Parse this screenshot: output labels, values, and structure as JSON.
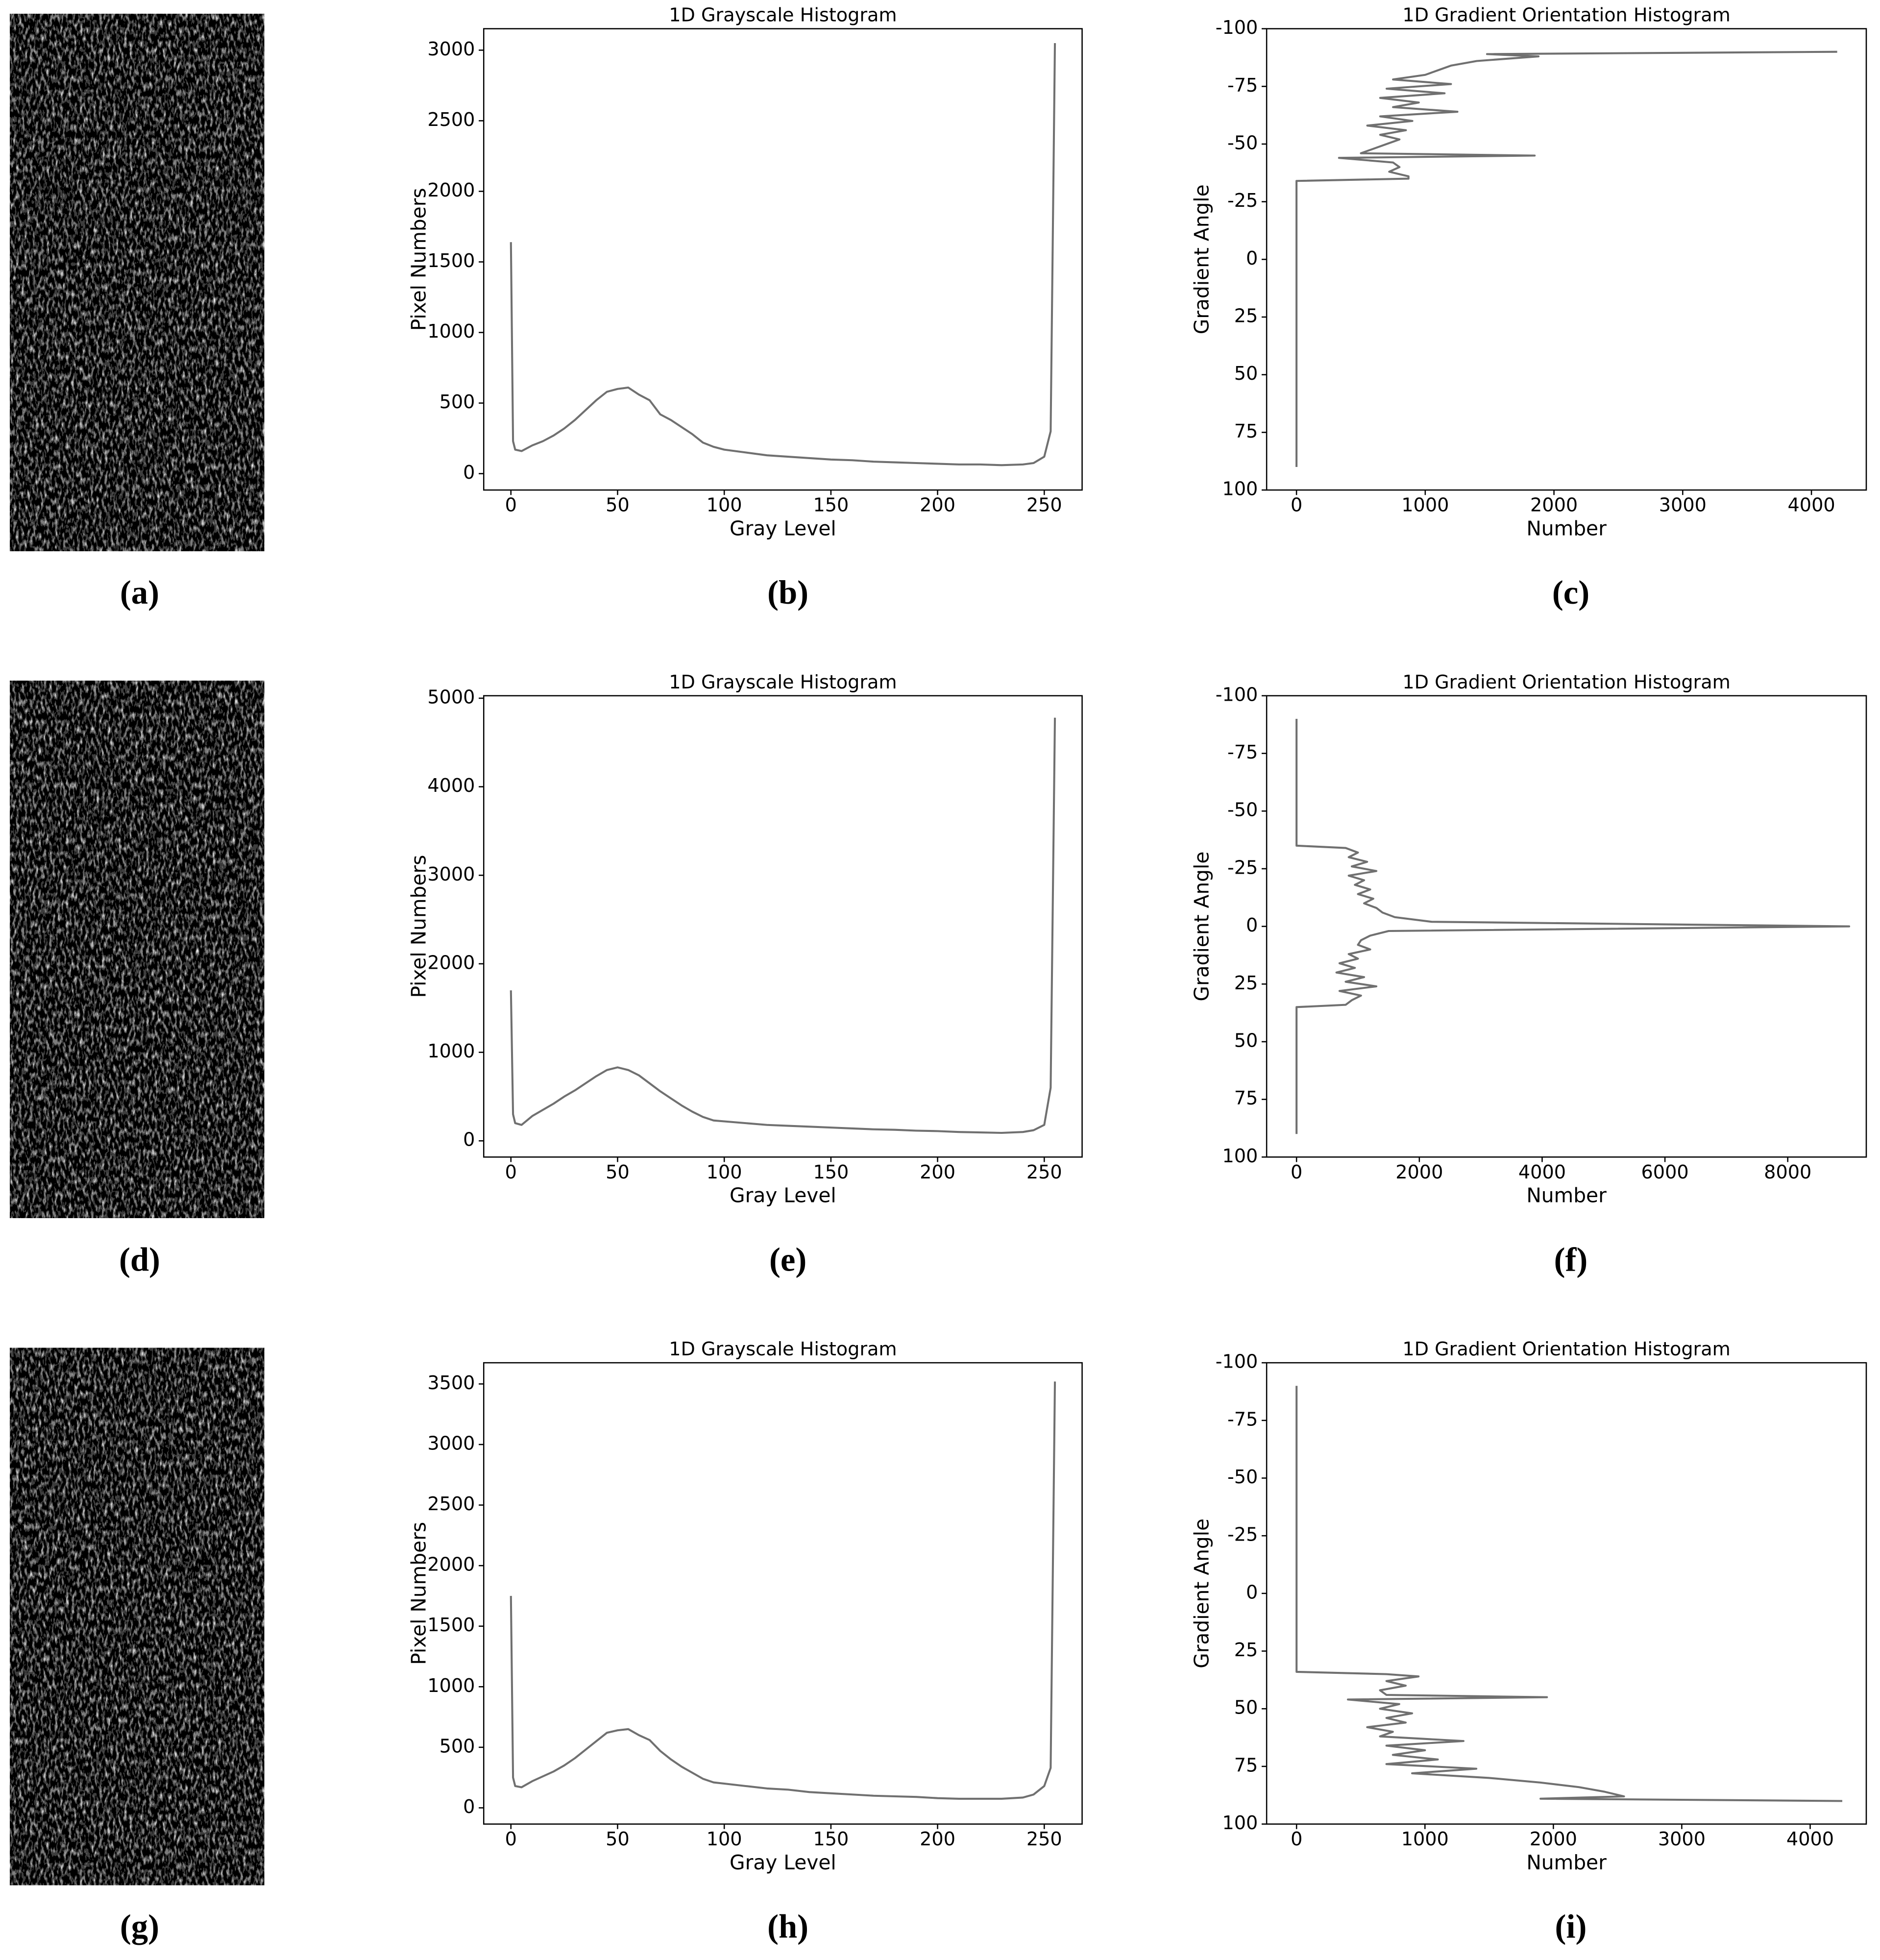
{
  "captions": [
    "(a)",
    "(b)",
    "(c)",
    "(d)",
    "(e)",
    "(f)",
    "(g)",
    "(h)",
    "(i)"
  ],
  "chart_data": [
    {
      "type": "line",
      "title": "1D Grayscale Histogram",
      "x_label": "Gray Level",
      "y_label": "Pixel Numbers",
      "color": "#707070",
      "x": [
        0,
        1,
        2,
        5,
        10,
        15,
        20,
        25,
        30,
        35,
        40,
        45,
        50,
        55,
        60,
        65,
        70,
        75,
        80,
        85,
        90,
        95,
        100,
        110,
        120,
        130,
        140,
        150,
        160,
        170,
        180,
        190,
        200,
        210,
        220,
        230,
        240,
        245,
        250,
        253,
        255
      ],
      "values": [
        1640,
        230,
        170,
        160,
        200,
        230,
        270,
        320,
        380,
        450,
        520,
        580,
        600,
        610,
        560,
        520,
        420,
        380,
        330,
        280,
        220,
        190,
        170,
        150,
        130,
        120,
        110,
        100,
        95,
        85,
        80,
        75,
        70,
        65,
        65,
        60,
        65,
        75,
        120,
        300,
        3050
      ],
      "xlim": [
        -12.75,
        267.75
      ],
      "ylim": [
        -116,
        3152
      ],
      "xticks": [
        0,
        50,
        100,
        150,
        200,
        250
      ],
      "yticks": [
        0,
        500,
        1000,
        1500,
        2000,
        2500,
        3000
      ]
    },
    {
      "type": "line",
      "orientation": "horizontal",
      "invert_y": true,
      "title": "1D Gradient Orientation Histogram",
      "x_label": "Number",
      "y_label": "Gradient Angle",
      "color": "#707070",
      "y": [
        -90,
        -89,
        -88,
        -86,
        -84,
        -82,
        -80,
        -78,
        -76,
        -74,
        -72,
        -70,
        -68,
        -66,
        -64,
        -62,
        -60,
        -58,
        -56,
        -54,
        -52,
        -50,
        -48,
        -46,
        -45,
        -44,
        -42,
        -40,
        -38,
        -36,
        -35,
        -34,
        90
      ],
      "values": [
        4200,
        1480,
        1880,
        1400,
        1200,
        1100,
        1000,
        750,
        1200,
        700,
        1150,
        650,
        950,
        750,
        1250,
        650,
        900,
        550,
        850,
        650,
        800,
        700,
        600,
        500,
        1850,
        330,
        750,
        800,
        720,
        870,
        870,
        0,
        0
      ],
      "xlim": [
        -232,
        4426
      ],
      "ylim": [
        -100,
        100
      ],
      "xticks": [
        0,
        1000,
        2000,
        3000,
        4000
      ],
      "yticks": [
        -100,
        -75,
        -50,
        -25,
        0,
        25,
        50,
        75,
        100
      ]
    },
    {
      "type": "line",
      "title": "1D Grayscale Histogram",
      "x_label": "Gray Level",
      "y_label": "Pixel Numbers",
      "color": "#707070",
      "x": [
        0,
        1,
        2,
        5,
        10,
        15,
        20,
        25,
        30,
        35,
        40,
        45,
        50,
        55,
        60,
        65,
        70,
        75,
        80,
        85,
        90,
        95,
        100,
        110,
        120,
        130,
        140,
        150,
        160,
        170,
        180,
        190,
        200,
        210,
        220,
        230,
        240,
        245,
        250,
        253,
        255
      ],
      "values": [
        1700,
        300,
        200,
        180,
        280,
        350,
        420,
        500,
        570,
        650,
        730,
        800,
        830,
        800,
        740,
        650,
        560,
        480,
        400,
        330,
        270,
        230,
        220,
        200,
        180,
        170,
        160,
        150,
        140,
        130,
        125,
        115,
        110,
        100,
        95,
        90,
        100,
        120,
        180,
        600,
        4780
      ],
      "xlim": [
        -12.75,
        267.75
      ],
      "ylim": [
        -183,
        5028
      ],
      "xticks": [
        0,
        50,
        100,
        150,
        200,
        250
      ],
      "yticks": [
        0,
        1000,
        2000,
        3000,
        4000,
        5000
      ]
    },
    {
      "type": "line",
      "orientation": "horizontal",
      "invert_y": true,
      "title": "1D Gradient Orientation Histogram",
      "x_label": "Number",
      "y_label": "Gradient Angle",
      "color": "#707070",
      "y": [
        -90,
        -35,
        -34,
        -32,
        -30,
        -28,
        -26,
        -24,
        -22,
        -20,
        -18,
        -16,
        -14,
        -12,
        -10,
        -8,
        -6,
        -4,
        -2,
        0,
        2,
        4,
        6,
        8,
        10,
        12,
        14,
        16,
        18,
        20,
        22,
        24,
        26,
        28,
        30,
        32,
        34,
        35,
        90
      ],
      "values": [
        0,
        0,
        800,
        1000,
        850,
        1150,
        900,
        1300,
        850,
        1100,
        950,
        1200,
        1000,
        1250,
        1100,
        1300,
        1400,
        1600,
        2200,
        9000,
        1500,
        1200,
        1050,
        1000,
        1200,
        850,
        1000,
        700,
        950,
        650,
        1100,
        800,
        1300,
        700,
        1050,
        900,
        800,
        0,
        0
      ],
      "xlim": [
        -487,
        9279
      ],
      "ylim": [
        -100,
        100
      ],
      "xticks": [
        0,
        2000,
        4000,
        6000,
        8000
      ],
      "yticks": [
        -100,
        -75,
        -50,
        -25,
        0,
        25,
        50,
        75,
        100
      ]
    },
    {
      "type": "line",
      "title": "1D Grayscale Histogram",
      "x_label": "Gray Level",
      "y_label": "Pixel Numbers",
      "color": "#707070",
      "x": [
        0,
        1,
        2,
        5,
        10,
        15,
        20,
        25,
        30,
        35,
        40,
        45,
        50,
        55,
        60,
        65,
        70,
        75,
        80,
        85,
        90,
        95,
        100,
        110,
        120,
        130,
        140,
        150,
        160,
        170,
        180,
        190,
        200,
        210,
        220,
        230,
        240,
        245,
        250,
        253,
        255
      ],
      "values": [
        1750,
        250,
        180,
        170,
        220,
        260,
        300,
        350,
        410,
        480,
        550,
        620,
        640,
        650,
        600,
        560,
        470,
        400,
        340,
        290,
        240,
        210,
        200,
        180,
        160,
        150,
        130,
        120,
        110,
        100,
        95,
        90,
        80,
        75,
        75,
        75,
        85,
        110,
        180,
        330,
        3520
      ],
      "xlim": [
        -12.75,
        267.75
      ],
      "ylim": [
        -134,
        3675
      ],
      "xticks": [
        0,
        50,
        100,
        150,
        200,
        250
      ],
      "yticks": [
        0,
        500,
        1000,
        1500,
        2000,
        2500,
        3000,
        3500
      ]
    },
    {
      "type": "line",
      "orientation": "horizontal",
      "invert_y": true,
      "title": "1D Gradient Orientation Histogram",
      "x_label": "Number",
      "y_label": "Gradient Angle",
      "color": "#707070",
      "y": [
        -90,
        34,
        35,
        36,
        38,
        40,
        42,
        44,
        45,
        46,
        48,
        50,
        52,
        54,
        56,
        58,
        60,
        62,
        64,
        66,
        68,
        70,
        72,
        74,
        76,
        78,
        80,
        82,
        84,
        86,
        88,
        89,
        90
      ],
      "values": [
        0,
        0,
        700,
        950,
        700,
        850,
        650,
        700,
        1950,
        400,
        800,
        650,
        900,
        700,
        850,
        550,
        750,
        650,
        1300,
        700,
        1000,
        750,
        1100,
        700,
        1400,
        900,
        1500,
        1900,
        2200,
        2400,
        2550,
        1900,
        4250
      ],
      "xlim": [
        -233,
        4437
      ],
      "ylim": [
        -100,
        100
      ],
      "xticks": [
        0,
        1000,
        2000,
        3000,
        4000
      ],
      "yticks": [
        -100,
        -75,
        -50,
        -25,
        0,
        25,
        50,
        75,
        100
      ]
    }
  ]
}
